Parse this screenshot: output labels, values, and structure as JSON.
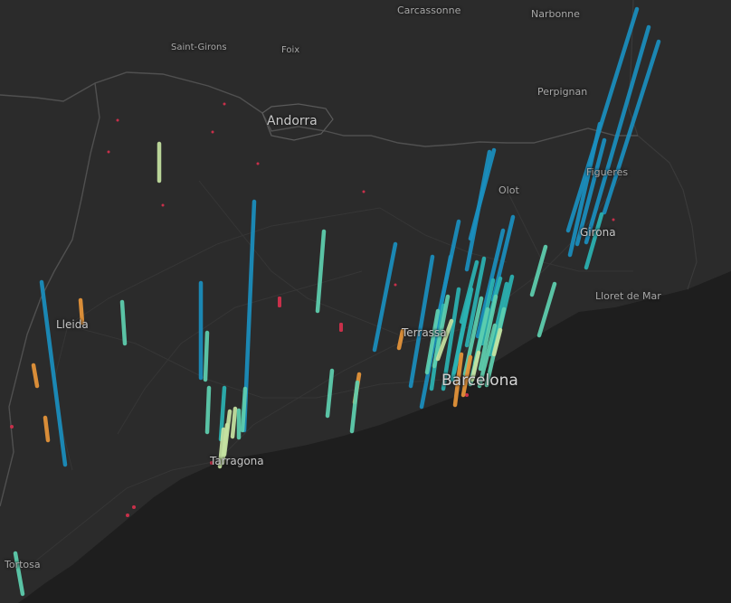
{
  "map": {
    "palette": {
      "background": "#262626",
      "land": "#2b2b2b",
      "sea": "#1e1e1e",
      "border": "#4e4e4e",
      "road": "#3a3a3a",
      "dot": "#c8304a"
    },
    "places": [
      {
        "id": "carcassonne",
        "label": "Carcassonne"
      },
      {
        "id": "narbonne",
        "label": "Narbonne"
      },
      {
        "id": "saint-girons",
        "label": "Saint-Girons"
      },
      {
        "id": "foix",
        "label": "Foix"
      },
      {
        "id": "perpignan",
        "label": "Perpignan"
      },
      {
        "id": "andorra",
        "label": "Andorra"
      },
      {
        "id": "olot",
        "label": "Olot"
      },
      {
        "id": "figueres",
        "label": "Figueres"
      },
      {
        "id": "girona",
        "label": "Girona"
      },
      {
        "id": "lloret-de-mar",
        "label": "Lloret de Mar"
      },
      {
        "id": "lleida",
        "label": "Lleida"
      },
      {
        "id": "terrassa",
        "label": "Terrassa"
      },
      {
        "id": "barcelona",
        "label": "Barcelona"
      },
      {
        "id": "tarragona",
        "label": "Tarragona"
      },
      {
        "id": "tortosa",
        "label": "Tortosa"
      }
    ],
    "series_colors": {
      "blue": "#1a8fbf",
      "teal": "#2bb3b3",
      "mint": "#5fd0b0",
      "pale": "#c6e3a2",
      "orange": "#e8963a"
    }
  }
}
